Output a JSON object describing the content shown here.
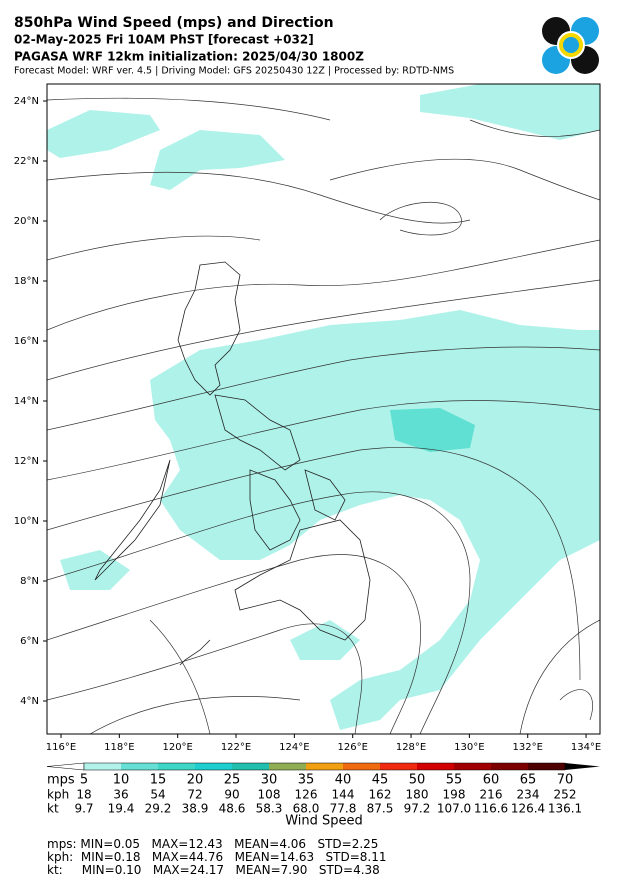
{
  "header": {
    "title": "850hPa Wind Speed (mps) and Direction",
    "line2": "02-May-2025 Fri 10AM PhST [forecast +032]",
    "line3": "PAGASA WRF 12km initialization: 2025/04/30 1800Z",
    "line4": "Forecast Model: WRF ver. 4.5 | Driving Model: GFS 20250430 12Z | Processed by: RDTD-NMS"
  },
  "map": {
    "lat_ticks": [
      {
        "value": 24,
        "label": "24°N"
      },
      {
        "value": 22,
        "label": "22°N"
      },
      {
        "value": 20,
        "label": "20°N"
      },
      {
        "value": 18,
        "label": "18°N"
      },
      {
        "value": 16,
        "label": "16°N"
      },
      {
        "value": 14,
        "label": "14°N"
      },
      {
        "value": 12,
        "label": "12°N"
      },
      {
        "value": 10,
        "label": "10°N"
      },
      {
        "value": 8,
        "label": "8°N"
      },
      {
        "value": 6,
        "label": "6°N"
      },
      {
        "value": 4,
        "label": "4°N"
      }
    ],
    "lon_ticks": [
      {
        "value": 116,
        "label": "116°E"
      },
      {
        "value": 118,
        "label": "118°E"
      },
      {
        "value": 120,
        "label": "120°E"
      },
      {
        "value": 122,
        "label": "122°E"
      },
      {
        "value": 124,
        "label": "124°E"
      },
      {
        "value": 126,
        "label": "126°E"
      },
      {
        "value": 128,
        "label": "128°E"
      },
      {
        "value": 130,
        "label": "130°E"
      },
      {
        "value": 132,
        "label": "132°E"
      },
      {
        "value": 134,
        "label": "134°E"
      }
    ]
  },
  "colorbar": {
    "label": "Wind Speed",
    "colors": [
      "#ffffff",
      "#b2f2ea",
      "#66e0d4",
      "#3ed6c6",
      "#1fcfcf",
      "#22bfae",
      "#8fae52",
      "#f0a010",
      "#f06a10",
      "#ef2a10",
      "#d20000",
      "#a20000",
      "#7d0000",
      "#4e0000",
      "#000000"
    ],
    "rows": [
      {
        "unit": "mps",
        "values": [
          "5",
          "10",
          "15",
          "20",
          "25",
          "30",
          "35",
          "40",
          "45",
          "50",
          "55",
          "60",
          "65",
          "70"
        ]
      },
      {
        "unit": "kph",
        "values": [
          "18",
          "36",
          "54",
          "72",
          "90",
          "108",
          "126",
          "144",
          "162",
          "180",
          "198",
          "216",
          "234",
          "252"
        ]
      },
      {
        "unit": "kt",
        "values": [
          "9.7",
          "19.4",
          "29.2",
          "38.9",
          "48.6",
          "58.3",
          "68.0",
          "77.8",
          "87.5",
          "97.2",
          "107.0",
          "116.6",
          "126.4",
          "136.1"
        ]
      }
    ]
  },
  "stats": [
    "mps: MIN=0.05   MAX=12.43   MEAN=4.06   STD=2.25",
    "kph:  MIN=0.18   MAX=44.76   MEAN=14.63   STD=8.11",
    "kt:     MIN=0.10   MAX=24.17   MEAN=7.90   STD=4.38"
  ]
}
